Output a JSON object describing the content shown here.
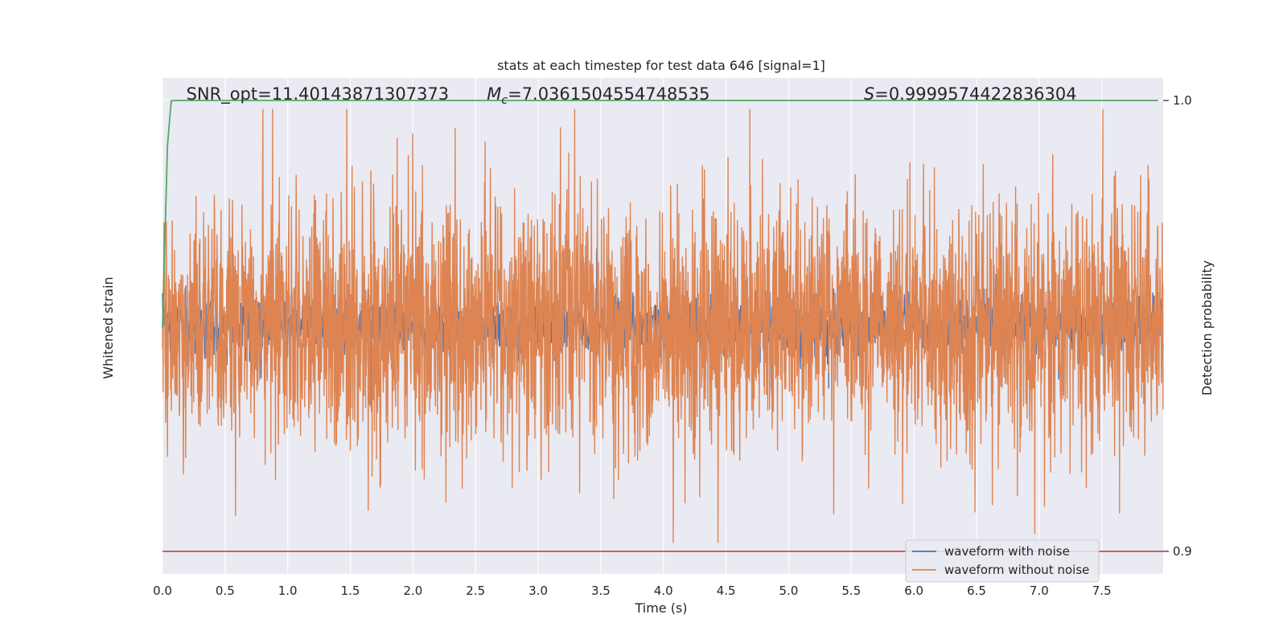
{
  "chart_data": {
    "type": "line",
    "title": "stats at each timestep for test data 646 [signal=1]",
    "xlabel": "Time (s)",
    "ylabel_left": "Whitened strain",
    "ylabel_right": "Detection probability",
    "xlim": [
      0.0,
      7.99
    ],
    "x_ticks": [
      0.0,
      0.5,
      1.0,
      1.5,
      2.0,
      2.5,
      3.0,
      3.5,
      4.0,
      4.5,
      5.0,
      5.5,
      6.0,
      6.5,
      7.0,
      7.5
    ],
    "x_tick_labels": [
      "0.0",
      "0.5",
      "1.0",
      "1.5",
      "2.0",
      "2.5",
      "3.0",
      "3.5",
      "4.0",
      "4.5",
      "5.0",
      "5.5",
      "6.0",
      "6.5",
      "7.0",
      "7.5"
    ],
    "right_ylim": [
      0.895,
      1.005
    ],
    "right_ticks": [
      0.9,
      1.0
    ],
    "right_tick_labels": [
      "0.9",
      "1.0"
    ],
    "left_ylim": [
      -1.2,
      1.2
    ],
    "grid": true,
    "annotations": [
      {
        "text": "SNR_opt=11.40143871307373",
        "x": 0.19
      },
      {
        "text": "=7.0361504554748535",
        "math_prefix": "M",
        "math_sub": "c",
        "x": 2.59
      },
      {
        "text": "=0.9999574422836304",
        "math_prefix": "S",
        "math_sub": "",
        "x": 5.6
      }
    ],
    "legend": {
      "placement": "lower-right",
      "entries": [
        "waveform with noise",
        "waveform without noise"
      ]
    },
    "series": [
      {
        "name": "waveform with noise",
        "color": "#4c72b0",
        "kind": "noise",
        "amplitude": 0.22
      },
      {
        "name": "waveform without noise",
        "color": "#dd8452",
        "kind": "noise",
        "amplitude": 1.0
      },
      {
        "color": "#55a868",
        "axis": "right",
        "x": [
          0.0,
          0.04,
          0.07,
          0.1,
          0.5,
          1.0,
          2.0,
          3.0,
          4.0,
          5.0,
          6.0,
          7.0,
          7.95
        ],
        "values": [
          0.9495,
          0.99,
          0.9999,
          1.0,
          1.0,
          1.0,
          1.0,
          1.0,
          1.0,
          1.0,
          1.0,
          1.0,
          1.0
        ]
      },
      {
        "color": "#c44e52",
        "axis": "right",
        "x": [
          0.0,
          7.99
        ],
        "values": [
          0.9,
          0.9
        ]
      }
    ],
    "colors": {
      "plot_bg": "#eaeaf2",
      "grid": "#ffffff",
      "text": "#262626"
    }
  }
}
